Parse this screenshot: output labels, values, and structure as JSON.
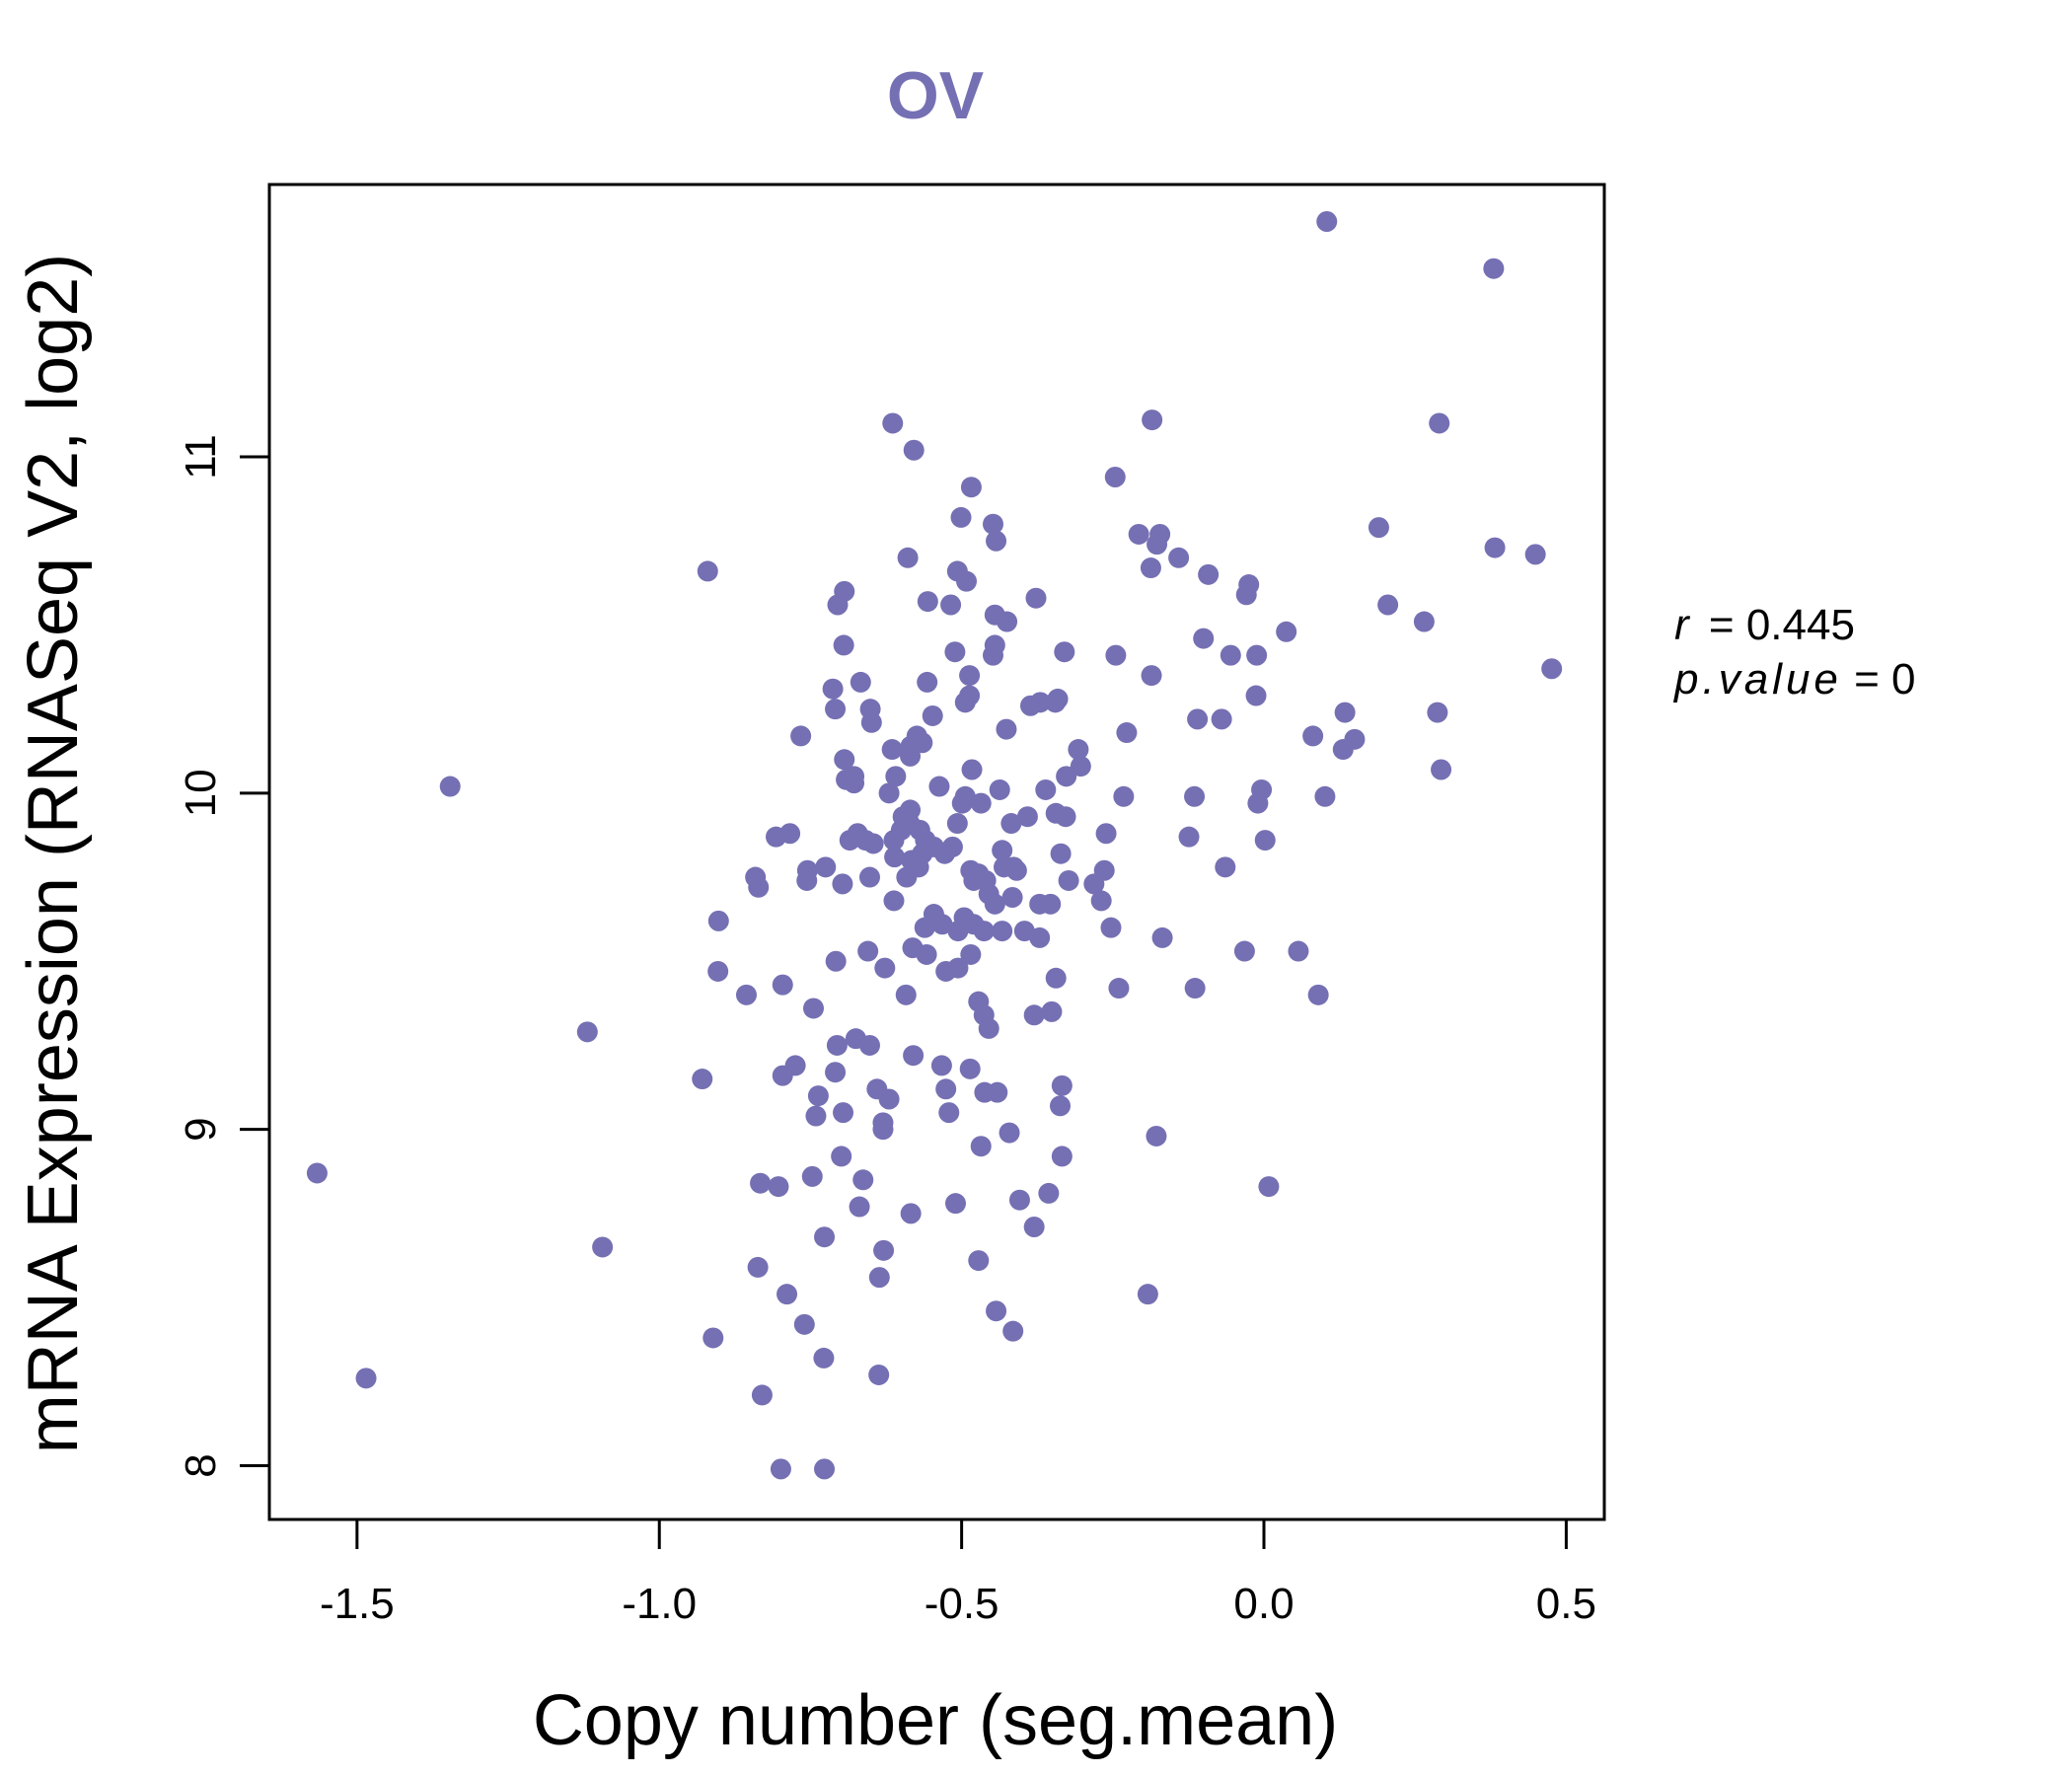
{
  "chart_data": {
    "type": "scatter",
    "title": "OV",
    "xlabel": "Copy number (seg.mean)",
    "ylabel": "mRNA Expression (RNASeq V2, log2)",
    "xlim": [
      -1.645,
      0.563
    ],
    "ylim": [
      7.84,
      11.81
    ],
    "xticks": [
      -1.5,
      -1.0,
      -0.5,
      0.0,
      0.5
    ],
    "xtick_labels": [
      "-1.5",
      "-1.0",
      "-0.5",
      "0.0",
      "0.5"
    ],
    "yticks": [
      8,
      9,
      10,
      11
    ],
    "ytick_labels": [
      "8",
      "9",
      "10",
      "11"
    ],
    "grid": false,
    "point_color": "#7570b3",
    "title_color": "#7570b3",
    "annotation": {
      "r_label": "r",
      "r_value": "0.445",
      "p_label": "p.value",
      "p_value": "0"
    },
    "points": [
      [
        0.104,
        11.7
      ],
      [
        0.38,
        11.56
      ],
      [
        0.29,
        11.1
      ],
      [
        -0.185,
        11.11
      ],
      [
        -0.614,
        11.1
      ],
      [
        -0.579,
        11.02
      ],
      [
        -0.246,
        10.94
      ],
      [
        -0.484,
        10.91
      ],
      [
        -0.501,
        10.82
      ],
      [
        -0.448,
        10.8
      ],
      [
        -0.443,
        10.75
      ],
      [
        0.19,
        10.79
      ],
      [
        -0.207,
        10.77
      ],
      [
        -0.172,
        10.77
      ],
      [
        -0.177,
        10.74
      ],
      [
        -0.141,
        10.7
      ],
      [
        -0.187,
        10.67
      ],
      [
        0.382,
        10.73
      ],
      [
        0.449,
        10.71
      ],
      [
        -0.589,
        10.7
      ],
      [
        -0.507,
        10.66
      ],
      [
        -0.492,
        10.63
      ],
      [
        -0.092,
        10.65
      ],
      [
        -0.025,
        10.62
      ],
      [
        -0.029,
        10.59
      ],
      [
        -0.92,
        10.66
      ],
      [
        -0.694,
        10.6
      ],
      [
        -0.705,
        10.56
      ],
      [
        -0.556,
        10.57
      ],
      [
        -0.518,
        10.56
      ],
      [
        -0.445,
        10.53
      ],
      [
        -0.425,
        10.51
      ],
      [
        -0.377,
        10.58
      ],
      [
        0.205,
        10.56
      ],
      [
        0.265,
        10.51
      ],
      [
        0.037,
        10.48
      ],
      [
        -0.1,
        10.46
      ],
      [
        -0.695,
        10.44
      ],
      [
        -0.445,
        10.44
      ],
      [
        -0.448,
        10.41
      ],
      [
        -0.511,
        10.42
      ],
      [
        -0.33,
        10.42
      ],
      [
        -0.245,
        10.41
      ],
      [
        -0.055,
        10.41
      ],
      [
        -0.012,
        10.41
      ],
      [
        0.476,
        10.37
      ],
      [
        -0.186,
        10.35
      ],
      [
        -0.557,
        10.33
      ],
      [
        -0.487,
        10.35
      ],
      [
        -0.667,
        10.33
      ],
      [
        -0.713,
        10.31
      ],
      [
        -0.651,
        10.25
      ],
      [
        -0.709,
        10.25
      ],
      [
        -0.494,
        10.27
      ],
      [
        -0.487,
        10.29
      ],
      [
        -0.341,
        10.28
      ],
      [
        -0.345,
        10.27
      ],
      [
        -0.37,
        10.27
      ],
      [
        -0.386,
        10.26
      ],
      [
        -0.013,
        10.29
      ],
      [
        0.287,
        10.24
      ],
      [
        0.134,
        10.24
      ],
      [
        -0.11,
        10.22
      ],
      [
        -0.07,
        10.22
      ],
      [
        -0.548,
        10.23
      ],
      [
        -0.649,
        10.21
      ],
      [
        -0.426,
        10.19
      ],
      [
        -0.766,
        10.17
      ],
      [
        -0.574,
        10.17
      ],
      [
        -0.565,
        10.15
      ],
      [
        -0.584,
        10.14
      ],
      [
        -0.227,
        10.18
      ],
      [
        0.081,
        10.17
      ],
      [
        0.15,
        10.16
      ],
      [
        0.131,
        10.13
      ],
      [
        -0.307,
        10.13
      ],
      [
        -0.303,
        10.08
      ],
      [
        -0.615,
        10.13
      ],
      [
        -0.585,
        10.11
      ],
      [
        -0.694,
        10.1
      ],
      [
        -0.483,
        10.07
      ],
      [
        -0.678,
        10.05
      ],
      [
        -0.609,
        10.05
      ],
      [
        -0.678,
        10.03
      ],
      [
        -0.691,
        10.04
      ],
      [
        -0.327,
        10.05
      ],
      [
        0.293,
        10.07
      ],
      [
        -1.346,
        10.02
      ],
      [
        -0.537,
        10.02
      ],
      [
        -0.62,
        10.0
      ],
      [
        -0.361,
        10.01
      ],
      [
        -0.437,
        10.01
      ],
      [
        -0.494,
        9.99
      ],
      [
        -0.499,
        9.97
      ],
      [
        -0.468,
        9.97
      ],
      [
        -0.232,
        9.99
      ],
      [
        -0.115,
        9.99
      ],
      [
        -0.004,
        10.01
      ],
      [
        0.101,
        9.99
      ],
      [
        -0.01,
        9.97
      ],
      [
        -0.585,
        9.95
      ],
      [
        -0.597,
        9.93
      ],
      [
        -0.586,
        9.91
      ],
      [
        -0.391,
        9.93
      ],
      [
        -0.418,
        9.91
      ],
      [
        -0.328,
        9.93
      ],
      [
        -0.344,
        9.94
      ],
      [
        -0.507,
        9.91
      ],
      [
        -0.6,
        9.89
      ],
      [
        -0.569,
        9.89
      ],
      [
        -0.784,
        9.88
      ],
      [
        -0.807,
        9.87
      ],
      [
        -0.685,
        9.86
      ],
      [
        -0.659,
        9.86
      ],
      [
        -0.672,
        9.88
      ],
      [
        -0.646,
        9.85
      ],
      [
        -0.612,
        9.86
      ],
      [
        -0.56,
        9.86
      ],
      [
        -0.546,
        9.84
      ],
      [
        -0.515,
        9.84
      ],
      [
        -0.565,
        9.82
      ],
      [
        -0.528,
        9.82
      ],
      [
        -0.433,
        9.83
      ],
      [
        -0.336,
        9.82
      ],
      [
        -0.261,
        9.88
      ],
      [
        -0.124,
        9.87
      ],
      [
        0.002,
        9.86
      ],
      [
        -0.611,
        9.81
      ],
      [
        -0.583,
        9.8
      ],
      [
        -0.571,
        9.78
      ],
      [
        -0.43,
        9.78
      ],
      [
        -0.414,
        9.78
      ],
      [
        -0.409,
        9.77
      ],
      [
        -0.485,
        9.77
      ],
      [
        -0.472,
        9.76
      ],
      [
        -0.755,
        9.77
      ],
      [
        -0.725,
        9.78
      ],
      [
        -0.591,
        9.75
      ],
      [
        -0.652,
        9.75
      ],
      [
        -0.841,
        9.75
      ],
      [
        -0.836,
        9.72
      ],
      [
        -0.756,
        9.74
      ],
      [
        -0.697,
        9.73
      ],
      [
        -0.48,
        9.74
      ],
      [
        -0.46,
        9.74
      ],
      [
        -0.264,
        9.77
      ],
      [
        -0.064,
        9.78
      ],
      [
        -0.323,
        9.74
      ],
      [
        -0.281,
        9.73
      ],
      [
        -0.455,
        9.7
      ],
      [
        -0.416,
        9.69
      ],
      [
        -0.445,
        9.67
      ],
      [
        -0.371,
        9.67
      ],
      [
        -0.353,
        9.67
      ],
      [
        -0.612,
        9.68
      ],
      [
        -0.269,
        9.68
      ],
      [
        -0.902,
        9.62
      ],
      [
        -0.546,
        9.64
      ],
      [
        -0.496,
        9.63
      ],
      [
        -0.48,
        9.61
      ],
      [
        -0.532,
        9.61
      ],
      [
        -0.463,
        9.59
      ],
      [
        -0.433,
        9.59
      ],
      [
        -0.396,
        9.59
      ],
      [
        -0.371,
        9.57
      ],
      [
        -0.561,
        9.6
      ],
      [
        -0.506,
        9.59
      ],
      [
        -0.253,
        9.6
      ],
      [
        -0.168,
        9.57
      ],
      [
        -0.581,
        9.54
      ],
      [
        -0.655,
        9.53
      ],
      [
        -0.485,
        9.52
      ],
      [
        -0.558,
        9.52
      ],
      [
        -0.708,
        9.5
      ],
      [
        -0.627,
        9.48
      ],
      [
        -0.506,
        9.48
      ],
      [
        -0.526,
        9.47
      ],
      [
        -0.032,
        9.53
      ],
      [
        0.057,
        9.53
      ],
      [
        -0.903,
        9.47
      ],
      [
        -0.344,
        9.45
      ],
      [
        -0.24,
        9.42
      ],
      [
        -0.114,
        9.42
      ],
      [
        -0.856,
        9.4
      ],
      [
        -0.796,
        9.43
      ],
      [
        -0.592,
        9.4
      ],
      [
        -0.472,
        9.38
      ],
      [
        -0.463,
        9.34
      ],
      [
        -0.455,
        9.3
      ],
      [
        -0.38,
        9.34
      ],
      [
        -0.351,
        9.35
      ],
      [
        0.09,
        9.4
      ],
      [
        -1.119,
        9.29
      ],
      [
        -0.745,
        9.36
      ],
      [
        -0.706,
        9.25
      ],
      [
        -0.675,
        9.27
      ],
      [
        -0.652,
        9.25
      ],
      [
        -0.58,
        9.22
      ],
      [
        -0.775,
        9.19
      ],
      [
        -0.796,
        9.16
      ],
      [
        -0.709,
        9.17
      ],
      [
        -0.533,
        9.19
      ],
      [
        -0.486,
        9.18
      ],
      [
        -0.929,
        9.15
      ],
      [
        -0.737,
        9.1
      ],
      [
        -0.64,
        9.12
      ],
      [
        -0.62,
        9.09
      ],
      [
        -0.696,
        9.05
      ],
      [
        -0.741,
        9.04
      ],
      [
        -0.526,
        9.12
      ],
      [
        -0.521,
        9.05
      ],
      [
        -0.462,
        9.11
      ],
      [
        -0.441,
        9.11
      ],
      [
        -0.334,
        9.13
      ],
      [
        -0.337,
        9.07
      ],
      [
        -0.63,
        9.02
      ],
      [
        -0.63,
        9.0
      ],
      [
        -0.421,
        8.99
      ],
      [
        -0.468,
        8.95
      ],
      [
        -0.334,
        8.92
      ],
      [
        -0.178,
        8.98
      ],
      [
        -0.699,
        8.92
      ],
      [
        -1.566,
        8.87
      ],
      [
        -0.747,
        8.86
      ],
      [
        -0.663,
        8.85
      ],
      [
        -0.833,
        8.84
      ],
      [
        -0.803,
        8.83
      ],
      [
        0.008,
        8.83
      ],
      [
        -0.356,
        8.81
      ],
      [
        -0.404,
        8.79
      ],
      [
        -0.669,
        8.77
      ],
      [
        -0.51,
        8.78
      ],
      [
        -0.584,
        8.75
      ],
      [
        -0.38,
        8.71
      ],
      [
        -0.727,
        8.68
      ],
      [
        -1.094,
        8.65
      ],
      [
        -0.629,
        8.64
      ],
      [
        -0.472,
        8.61
      ],
      [
        -0.837,
        8.59
      ],
      [
        -0.636,
        8.56
      ],
      [
        -0.192,
        8.51
      ],
      [
        -0.789,
        8.51
      ],
      [
        -0.443,
        8.46
      ],
      [
        -0.76,
        8.42
      ],
      [
        -0.415,
        8.4
      ],
      [
        -0.911,
        8.38
      ],
      [
        -0.728,
        8.32
      ],
      [
        -1.485,
        8.26
      ],
      [
        -0.637,
        8.27
      ],
      [
        -0.83,
        8.21
      ],
      [
        -0.799,
        7.99
      ],
      [
        -0.727,
        7.99
      ]
    ]
  }
}
